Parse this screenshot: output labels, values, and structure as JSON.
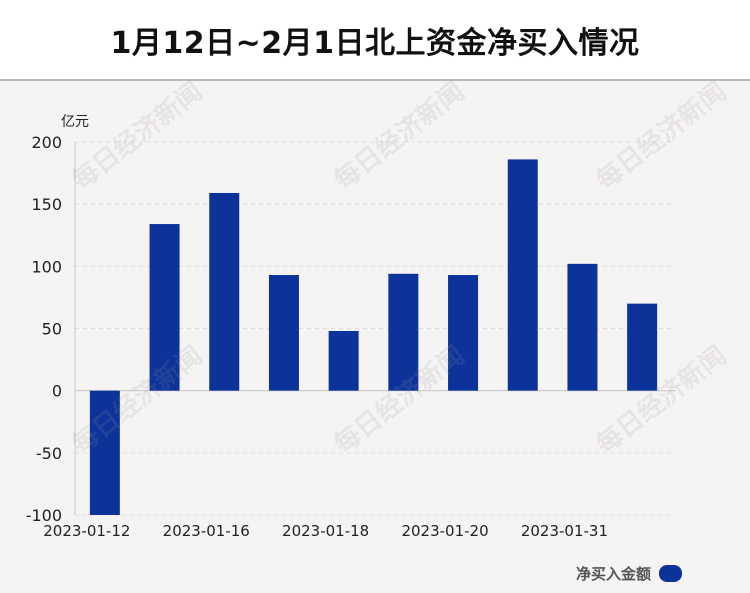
{
  "header": {
    "title": "1月12日~2月1日北上资金净买入情况"
  },
  "watermark": "每日经济新闻",
  "colors": {
    "bar": "#0c339a",
    "grid": "#dddddd",
    "axis": "#c8c8c8",
    "text": "#222222"
  },
  "chart_data": {
    "type": "bar",
    "unit_label": "亿元",
    "categories": [
      "2023-01-12",
      "",
      "2023-01-16",
      "",
      "2023-01-18",
      "",
      "2023-01-20",
      "",
      "2023-01-31",
      ""
    ],
    "values": [
      -100,
      134,
      159,
      93,
      48,
      94,
      93,
      186,
      102,
      70
    ],
    "ylim": [
      -100,
      200
    ],
    "yticks": [
      200,
      150,
      100,
      50,
      0,
      -50,
      -100
    ],
    "grid": true,
    "legend": [
      {
        "name": "净买入金额",
        "color": "#0c339a"
      }
    ],
    "legend_position": "bottom-right"
  }
}
